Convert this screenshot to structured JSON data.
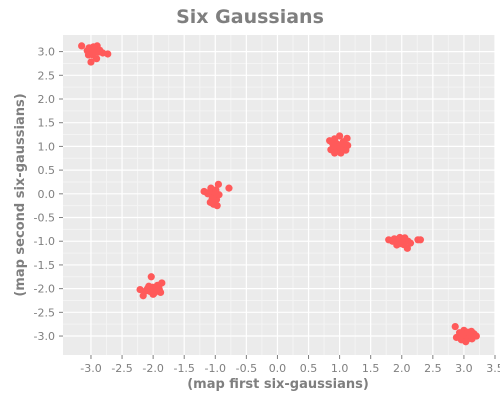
{
  "chart_data": {
    "type": "scatter",
    "title": "Six Gaussians",
    "xlabel": "(map first six-gaussians)",
    "ylabel": "(map second six-gaussians)",
    "xlim": [
      -3.45,
      3.5
    ],
    "ylim": [
      -3.4,
      3.35
    ],
    "x_ticks": [
      -3.0,
      -2.5,
      -2.0,
      -1.5,
      -1.0,
      -0.5,
      0.0,
      0.5,
      1.0,
      1.5,
      2.0,
      2.5,
      3.0,
      3.5
    ],
    "x_tick_labels": [
      "-3.0",
      "-2.5",
      "-2.0",
      "-1.5",
      "-1.0",
      "-0.5",
      "0.0",
      "0.5",
      "1.0",
      "1.5",
      "2.0",
      "2.5",
      "3.0",
      "3.5"
    ],
    "y_ticks": [
      3.0,
      2.5,
      2.0,
      1.5,
      1.0,
      0.5,
      0.0,
      -0.5,
      -1.0,
      -1.5,
      -2.0,
      -2.5,
      -3.0
    ],
    "y_tick_labels": [
      "3.0",
      "2.5",
      "2.0",
      "1.5",
      "1.0",
      "0.5",
      "0.0",
      "-0.5",
      "-1.0",
      "-1.5",
      "-2.0",
      "-2.5",
      "-3.0"
    ],
    "grid": true,
    "colors": {
      "background": "#ebebeb",
      "grid_major": "#ffffff",
      "grid_minor": "#f4f4f4",
      "marker": "#ff5a5a",
      "text": "#7f7f7f"
    },
    "series": [
      {
        "points": [
          {
            "x": -3.15,
            "y": 3.12
          },
          {
            "x": -3.03,
            "y": 3.08
          },
          {
            "x": -2.96,
            "y": 3.1
          },
          {
            "x": -2.9,
            "y": 3.12
          },
          {
            "x": -3.02,
            "y": 2.98
          },
          {
            "x": -2.95,
            "y": 2.98
          },
          {
            "x": -2.88,
            "y": 2.99
          },
          {
            "x": -2.97,
            "y": 2.93
          },
          {
            "x": -2.73,
            "y": 2.95
          },
          {
            "x": -2.81,
            "y": 2.97
          },
          {
            "x": -3.0,
            "y": 2.78
          },
          {
            "x": -2.91,
            "y": 2.85
          },
          {
            "x": -3.06,
            "y": 3.02
          },
          {
            "x": -2.99,
            "y": 3.04
          },
          {
            "x": -2.93,
            "y": 3.05
          },
          {
            "x": -3.04,
            "y": 2.93
          },
          {
            "x": -2.86,
            "y": 3.03
          },
          {
            "x": -2.95,
            "y": 3.0
          },
          {
            "x": -2.03,
            "y": -1.75
          },
          {
            "x": -2.21,
            "y": -2.02
          },
          {
            "x": -2.09,
            "y": -2.0
          },
          {
            "x": -1.97,
            "y": -1.99
          },
          {
            "x": -1.86,
            "y": -1.88
          },
          {
            "x": -1.93,
            "y": -1.93
          },
          {
            "x": -2.01,
            "y": -1.97
          },
          {
            "x": -2.05,
            "y": -2.06
          },
          {
            "x": -1.98,
            "y": -2.09
          },
          {
            "x": -1.9,
            "y": -2.02
          },
          {
            "x": -2.16,
            "y": -2.15
          },
          {
            "x": -2.0,
            "y": -2.12
          },
          {
            "x": -1.88,
            "y": -2.08
          },
          {
            "x": -2.12,
            "y": -2.05
          },
          {
            "x": -1.94,
            "y": -2.04
          },
          {
            "x": -2.07,
            "y": -1.95
          },
          {
            "x": -1.91,
            "y": -1.96
          },
          {
            "x": -2.0,
            "y": -2.03
          },
          {
            "x": -1.07,
            "y": 0.12
          },
          {
            "x": -0.95,
            "y": 0.2
          },
          {
            "x": -0.78,
            "y": 0.12
          },
          {
            "x": -1.18,
            "y": 0.05
          },
          {
            "x": -1.12,
            "y": 0.0
          },
          {
            "x": -1.04,
            "y": 0.05
          },
          {
            "x": -0.99,
            "y": 0.08
          },
          {
            "x": -1.02,
            "y": -0.05
          },
          {
            "x": -0.98,
            "y": -0.12
          },
          {
            "x": -1.08,
            "y": -0.18
          },
          {
            "x": -0.97,
            "y": -0.25
          },
          {
            "x": -1.03,
            "y": -0.22
          },
          {
            "x": -1.1,
            "y": 0.03
          },
          {
            "x": -0.94,
            "y": -0.02
          },
          {
            "x": -1.0,
            "y": 0.0
          },
          {
            "x": -1.05,
            "y": -0.1
          },
          {
            "x": 0.84,
            "y": 1.12
          },
          {
            "x": 0.92,
            "y": 1.16
          },
          {
            "x": 1.0,
            "y": 1.22
          },
          {
            "x": 1.12,
            "y": 1.17
          },
          {
            "x": 0.95,
            "y": 1.06
          },
          {
            "x": 1.04,
            "y": 1.05
          },
          {
            "x": 0.9,
            "y": 1.02
          },
          {
            "x": 1.07,
            "y": 0.98
          },
          {
            "x": 0.86,
            "y": 0.93
          },
          {
            "x": 0.98,
            "y": 0.93
          },
          {
            "x": 1.1,
            "y": 0.92
          },
          {
            "x": 0.92,
            "y": 0.86
          },
          {
            "x": 1.02,
            "y": 0.86
          },
          {
            "x": 1.13,
            "y": 1.02
          },
          {
            "x": 0.95,
            "y": 0.98
          },
          {
            "x": 1.0,
            "y": 1.0
          },
          {
            "x": 0.88,
            "y": 1.08
          },
          {
            "x": 1.06,
            "y": 1.1
          },
          {
            "x": 1.79,
            "y": -0.97
          },
          {
            "x": 1.88,
            "y": -0.95
          },
          {
            "x": 1.97,
            "y": -0.92
          },
          {
            "x": 2.05,
            "y": -0.93
          },
          {
            "x": 1.93,
            "y": -1.0
          },
          {
            "x": 2.0,
            "y": -1.02
          },
          {
            "x": 2.1,
            "y": -1.0
          },
          {
            "x": 2.26,
            "y": -0.97
          },
          {
            "x": 2.3,
            "y": -0.97
          },
          {
            "x": 1.92,
            "y": -1.08
          },
          {
            "x": 2.03,
            "y": -1.07
          },
          {
            "x": 2.09,
            "y": -1.15
          },
          {
            "x": 1.97,
            "y": -1.05
          },
          {
            "x": 2.14,
            "y": -1.04
          },
          {
            "x": 2.0,
            "y": -0.97
          },
          {
            "x": 1.85,
            "y": -1.0
          },
          {
            "x": 2.86,
            "y": -2.8
          },
          {
            "x": 3.0,
            "y": -2.88
          },
          {
            "x": 3.12,
            "y": -2.9
          },
          {
            "x": 2.93,
            "y": -2.93
          },
          {
            "x": 3.03,
            "y": -2.96
          },
          {
            "x": 3.16,
            "y": -2.95
          },
          {
            "x": 3.2,
            "y": -3.0
          },
          {
            "x": 2.88,
            "y": -3.03
          },
          {
            "x": 3.0,
            "y": -3.0
          },
          {
            "x": 3.08,
            "y": -3.05
          },
          {
            "x": 2.96,
            "y": -3.08
          },
          {
            "x": 3.03,
            "y": -3.12
          },
          {
            "x": 3.1,
            "y": -2.98
          },
          {
            "x": 2.98,
            "y": -2.97
          },
          {
            "x": 3.06,
            "y": -2.92
          },
          {
            "x": 3.13,
            "y": -3.06
          }
        ]
      }
    ]
  }
}
